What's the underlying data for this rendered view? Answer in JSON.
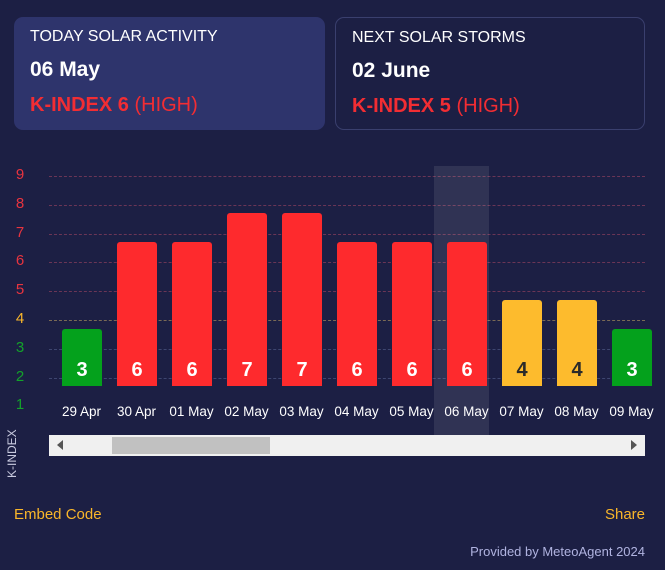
{
  "cards": [
    {
      "title": "TODAY SOLAR ACTIVITY",
      "date": "06 May",
      "kindex": "K-INDEX 6",
      "level": "(HIGH)"
    },
    {
      "title": "NEXT SOLAR STORMS",
      "date": "02 June",
      "kindex": "K-INDEX 5",
      "level": "(HIGH)"
    }
  ],
  "colors": {
    "low": "#04a11c",
    "medium": "#fdbb2d",
    "high": "#fe2a2d",
    "background": "#1c1f44"
  },
  "chart_data": {
    "type": "bar",
    "ylabel": "K-INDEX",
    "yticks": [
      "9",
      "8",
      "7",
      "6",
      "5",
      "4",
      "3",
      "2",
      "1"
    ],
    "ylim": [
      1,
      9
    ],
    "categories": [
      "29 Apr",
      "30 Apr",
      "01 May",
      "02 May",
      "03 May",
      "04 May",
      "05 May",
      "06 May",
      "07 May",
      "08 May",
      "09 May"
    ],
    "values": [
      3,
      6,
      6,
      7,
      7,
      6,
      6,
      6,
      4,
      4,
      3
    ],
    "highlighted": "06 May"
  },
  "footer": {
    "embed": "Embed Code",
    "share": "Share",
    "credit": "Provided by MeteoAgent 2024"
  }
}
